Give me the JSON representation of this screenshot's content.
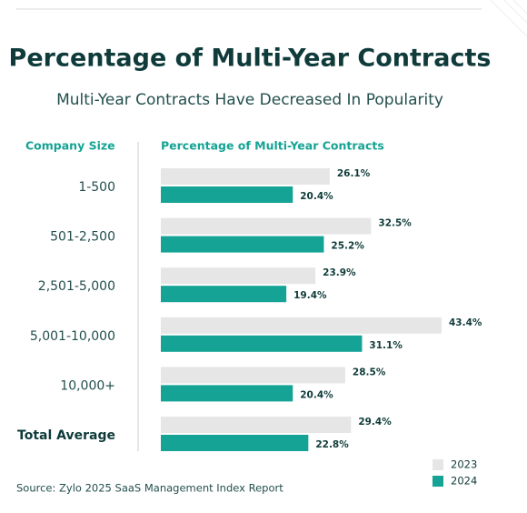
{
  "chart_data": {
    "type": "bar",
    "orientation": "horizontal",
    "title": "Percentage of Multi-Year Contracts",
    "subtitle": "Multi-Year Contracts Have Decreased In Popularity",
    "category_header": "Company Size",
    "value_header": "Percentage of Multi-Year Contracts",
    "categories": [
      "1-500",
      "501-2,500",
      "2,501-5,000",
      "5,001-10,000",
      "10,000+",
      "Total Average"
    ],
    "series": [
      {
        "name": "2023",
        "color": "#e6e6e6",
        "values": [
          26.1,
          32.5,
          23.9,
          43.4,
          28.5,
          29.4
        ],
        "value_labels": [
          "26.1%",
          "32.5%",
          "23.9%",
          "43.4%",
          "28.5%",
          "29.4%"
        ]
      },
      {
        "name": "2024",
        "color": "#14a394",
        "values": [
          20.4,
          25.2,
          19.4,
          31.1,
          20.4,
          22.8
        ],
        "value_labels": [
          "20.4%",
          "25.2%",
          "19.4%",
          "31.1%",
          "20.4%",
          "22.8%"
        ]
      }
    ],
    "source": "Source: Zylo 2025 SaaS Management Index Report"
  }
}
